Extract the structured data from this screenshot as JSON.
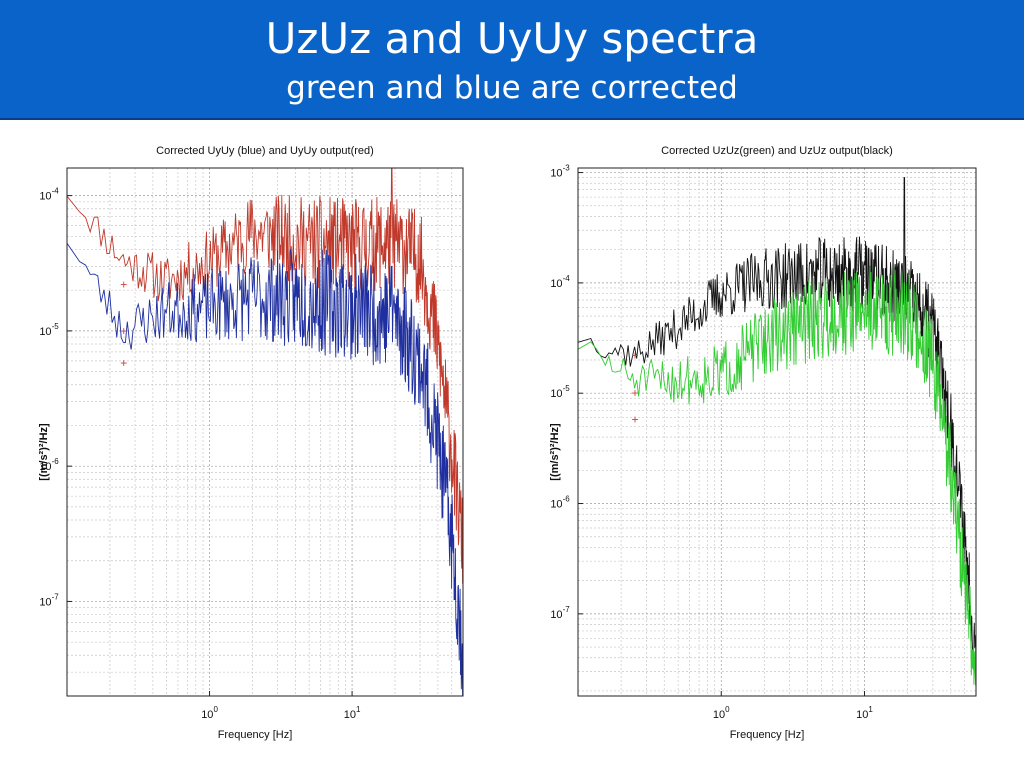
{
  "slide": {
    "title": "UzUz and UyUy spectra",
    "subtitle": "green and blue are corrected"
  },
  "colors": {
    "banner": "#0a63c9",
    "title_text": "#ffffff",
    "red": "#c0392b",
    "blue": "#1f2fa0",
    "black": "#111111",
    "green": "#33cc33",
    "marker": "#d23b3b"
  },
  "chart_data": [
    {
      "type": "line",
      "title": "Corrected UyUy (blue) and UyUy output(red)",
      "xlabel": "Frequency [Hz]",
      "ylabel": "[(m/s²)²/Hz]",
      "xscale": "log",
      "yscale": "log",
      "xlim": [
        0.1,
        60
      ],
      "ylim": [
        2e-08,
        0.00016
      ],
      "grid": true,
      "xticks": [
        {
          "value": 1,
          "base": "10",
          "exp": "0"
        },
        {
          "value": 10,
          "base": "10",
          "exp": "1"
        }
      ],
      "yticks": [
        {
          "value": 1e-07,
          "base": "10",
          "exp": "-7"
        },
        {
          "value": 1e-06,
          "base": "10",
          "exp": "-6"
        },
        {
          "value": 1e-05,
          "base": "10",
          "exp": "-5"
        },
        {
          "value": 0.0001,
          "base": "10",
          "exp": "-4"
        }
      ],
      "markers": [
        {
          "x": 0.25,
          "y": 2.2e-05
        },
        {
          "x": 0.25,
          "y": 1e-05
        },
        {
          "x": 0.25,
          "y": 5.8e-06
        }
      ],
      "series": [
        {
          "color": "#c0392b",
          "base_points": [
            [
              0.1,
              0.00011
            ],
            [
              0.25,
              3.3e-05
            ],
            [
              0.5,
              2.3e-05
            ],
            [
              1,
              3.3e-05
            ],
            [
              2,
              5.5e-05
            ],
            [
              5,
              4.5e-05
            ],
            [
              10,
              4.3e-05
            ],
            [
              20,
              4.5e-05
            ],
            [
              30,
              3.5e-05
            ],
            [
              40,
              8e-06
            ],
            [
              50,
              1.3e-06
            ],
            [
              60,
              2.5e-07
            ]
          ],
          "noise": 0.35,
          "spikes": [
            [
              19,
              0.0008
            ]
          ],
          "seed": 11
        },
        {
          "color": "#1f2fa0",
          "base_points": [
            [
              0.1,
              5e-05
            ],
            [
              0.25,
              1e-05
            ],
            [
              0.5,
              1.4e-05
            ],
            [
              1,
              1.5e-05
            ],
            [
              2,
              1.8e-05
            ],
            [
              5,
              1.7e-05
            ],
            [
              10,
              1.5e-05
            ],
            [
              20,
              1.3e-05
            ],
            [
              30,
              6e-06
            ],
            [
              40,
              1.5e-06
            ],
            [
              50,
              3e-07
            ],
            [
              60,
              4e-08
            ]
          ],
          "noise": 0.4,
          "spikes": [
            [
              19,
              3e-05
            ]
          ],
          "seed": 23
        }
      ]
    },
    {
      "type": "line",
      "title": "Corrected UzUz(green) and UzUz output(black)",
      "xlabel": "Frequency [Hz]",
      "ylabel": "[(m/s²)²/Hz]",
      "xscale": "log",
      "yscale": "log",
      "xlim": [
        0.1,
        60
      ],
      "ylim": [
        1.8e-08,
        0.0011
      ],
      "grid": true,
      "xticks": [
        {
          "value": 1,
          "base": "10",
          "exp": "0"
        },
        {
          "value": 10,
          "base": "10",
          "exp": "1"
        }
      ],
      "yticks": [
        {
          "value": 1e-07,
          "base": "10",
          "exp": "-7"
        },
        {
          "value": 1e-06,
          "base": "10",
          "exp": "-6"
        },
        {
          "value": 1e-05,
          "base": "10",
          "exp": "-5"
        },
        {
          "value": 0.0001,
          "base": "10",
          "exp": "-4"
        },
        {
          "value": 0.001,
          "base": "10",
          "exp": "-3"
        }
      ],
      "markers": [
        {
          "x": 0.25,
          "y": 2.2e-05
        },
        {
          "x": 0.25,
          "y": 1e-05
        },
        {
          "x": 0.25,
          "y": 5.8e-06
        }
      ],
      "series": [
        {
          "color": "#111111",
          "base_points": [
            [
              0.1,
              3.2e-05
            ],
            [
              0.25,
              2.2e-05
            ],
            [
              0.5,
              4e-05
            ],
            [
              1,
              8e-05
            ],
            [
              2,
              0.00011
            ],
            [
              5,
              0.00012
            ],
            [
              10,
              0.00012
            ],
            [
              20,
              8e-05
            ],
            [
              30,
              4e-05
            ],
            [
              40,
              5e-06
            ],
            [
              50,
              5e-07
            ],
            [
              60,
              4e-08
            ]
          ],
          "noise": 0.35,
          "spikes": [
            [
              19,
              0.0009
            ]
          ],
          "seed": 37
        },
        {
          "color": "#33cc33",
          "base_points": [
            [
              0.1,
              2.8e-05
            ],
            [
              0.25,
              1.3e-05
            ],
            [
              0.5,
              1.3e-05
            ],
            [
              1,
              1.5e-05
            ],
            [
              2,
              3e-05
            ],
            [
              5,
              5e-05
            ],
            [
              10,
              6e-05
            ],
            [
              20,
              5e-05
            ],
            [
              30,
              2e-05
            ],
            [
              40,
              2e-06
            ],
            [
              50,
              2e-07
            ],
            [
              60,
              2.5e-08
            ]
          ],
          "noise": 0.4,
          "spikes": [
            [
              19,
              0.0001
            ]
          ],
          "seed": 51
        }
      ]
    }
  ]
}
